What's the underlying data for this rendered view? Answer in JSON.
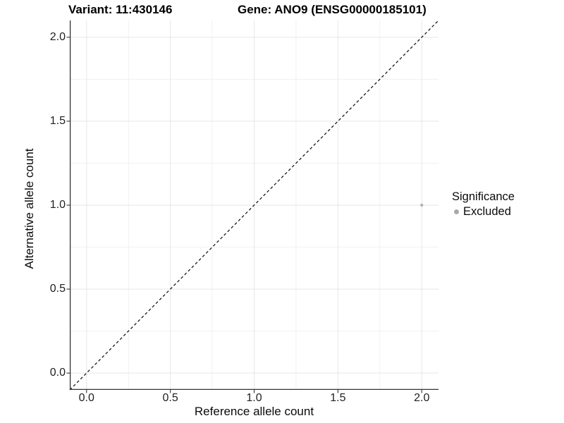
{
  "chart_data": {
    "type": "scatter",
    "title_left": "Variant: 11:430146",
    "title_right": "Gene: ANO9 (ENSG00000185101)",
    "xlabel": "Reference allele count",
    "ylabel": "Alternative allele count",
    "xlim": [
      -0.1,
      2.1
    ],
    "ylim": [
      -0.1,
      2.1
    ],
    "x_ticks": [
      0.0,
      0.5,
      1.0,
      1.5,
      2.0
    ],
    "y_ticks": [
      0.0,
      0.5,
      1.0,
      1.5,
      2.0
    ],
    "x_tick_labels": [
      "0.0",
      "0.5",
      "1.0",
      "1.5",
      "2.0"
    ],
    "y_tick_labels": [
      "0.0",
      "0.5",
      "1.0",
      "1.5",
      "2.0"
    ],
    "x_minor_ticks": [
      0.25,
      0.75,
      1.25,
      1.75
    ],
    "y_minor_ticks": [
      0.25,
      0.75,
      1.25,
      1.75
    ],
    "grid": "major and minor, light gray on white",
    "reference_line": {
      "style": "dashed",
      "from": [
        -0.1,
        -0.1
      ],
      "to": [
        2.1,
        2.1
      ],
      "color": "#1a1a1a",
      "meaning": "identity line y = x"
    },
    "series": [
      {
        "name": "Excluded",
        "points": [
          {
            "x": 2.0,
            "y": 1.0
          }
        ],
        "color": "#b4b4b4",
        "point_radius": 2.2
      }
    ],
    "legend": {
      "title": "Significance",
      "position": "right",
      "entries": [
        {
          "label": "Excluded",
          "color": "#a9a9a9"
        }
      ]
    },
    "colors": {
      "background": "#ffffff",
      "axis_line": "#333333",
      "major_grid": "#e6e6e6",
      "minor_grid": "#f1f1f1",
      "tick_mark": "#333333",
      "point": "#b4b4b4"
    }
  }
}
